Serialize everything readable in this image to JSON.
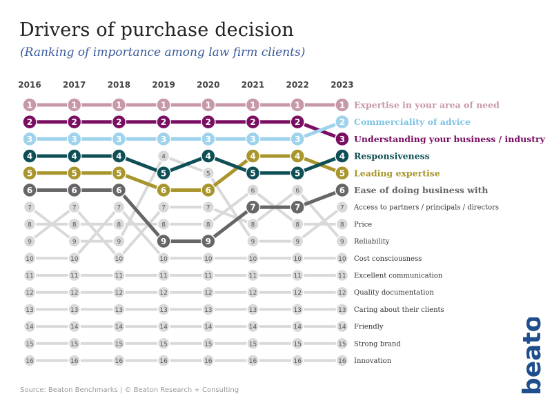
{
  "title": "Drivers of purchase decision",
  "subtitle": "(Ranking of importance among law firm clients)",
  "source": "Source: Beaton Benchmarks | © Beaton Research + Consulting",
  "logo_text": "beaton",
  "logo_color": "#1f4e8c",
  "chart_data": {
    "type": "line",
    "chart_kind": "bump chart (rank over time)",
    "x": [
      "2016",
      "2017",
      "2018",
      "2019",
      "2020",
      "2021",
      "2022",
      "2023"
    ],
    "y_inverted": true,
    "ylim": [
      1,
      16
    ],
    "grid": false,
    "legend": "labels at right end of each line",
    "series": [
      {
        "name": "Expertise in your area of need",
        "ranks": [
          1,
          1,
          1,
          1,
          1,
          1,
          1,
          1
        ],
        "color": "#c799a8",
        "highlight": true
      },
      {
        "name": "Commerciality of advice",
        "ranks": [
          3,
          3,
          3,
          3,
          3,
          3,
          3,
          2
        ],
        "color": "#9fd3ec",
        "highlight": true
      },
      {
        "name": "Understanding your business / industry",
        "ranks": [
          2,
          2,
          2,
          2,
          2,
          2,
          2,
          3
        ],
        "color": "#7a0e62",
        "highlight": true
      },
      {
        "name": "Responsiveness",
        "ranks": [
          4,
          4,
          4,
          5,
          4,
          5,
          5,
          4
        ],
        "color": "#0e4f55",
        "highlight": true
      },
      {
        "name": "Leading expertise",
        "ranks": [
          5,
          5,
          5,
          6,
          6,
          4,
          4,
          5
        ],
        "color": "#a8952b",
        "highlight": true
      },
      {
        "name": "Ease of doing business with",
        "ranks": [
          6,
          6,
          6,
          9,
          9,
          7,
          7,
          6
        ],
        "color": "#686568",
        "highlight": true
      },
      {
        "name": "Access to partners / principals / directors",
        "ranks": [
          7,
          9,
          9,
          4,
          5,
          9,
          9,
          7
        ],
        "color": "#d9d9d9",
        "highlight": false
      },
      {
        "name": "Price",
        "ranks": [
          8,
          8,
          8,
          8,
          8,
          6,
          8,
          8
        ],
        "color": "#d9d9d9",
        "highlight": false
      },
      {
        "name": "Reliability",
        "ranks": [
          9,
          7,
          10,
          7,
          7,
          8,
          6,
          9
        ],
        "color": "#d9d9d9",
        "highlight": false
      },
      {
        "name": "Cost consciousness",
        "ranks": [
          10,
          10,
          7,
          10,
          10,
          10,
          10,
          10
        ],
        "color": "#d9d9d9",
        "highlight": false
      },
      {
        "name": "Excellent communication",
        "ranks": [
          11,
          11,
          11,
          11,
          11,
          11,
          11,
          11
        ],
        "color": "#d9d9d9",
        "highlight": false
      },
      {
        "name": "Quality documentation",
        "ranks": [
          12,
          12,
          12,
          12,
          12,
          12,
          12,
          12
        ],
        "color": "#d9d9d9",
        "highlight": false
      },
      {
        "name": "Caring about their clients",
        "ranks": [
          13,
          13,
          13,
          13,
          13,
          13,
          13,
          13
        ],
        "color": "#d9d9d9",
        "highlight": false
      },
      {
        "name": "Friendly",
        "ranks": [
          14,
          14,
          14,
          14,
          14,
          14,
          14,
          14
        ],
        "color": "#d9d9d9",
        "highlight": false
      },
      {
        "name": "Strong brand",
        "ranks": [
          15,
          15,
          15,
          15,
          15,
          15,
          15,
          15
        ],
        "color": "#d9d9d9",
        "highlight": false
      },
      {
        "name": "Innovation",
        "ranks": [
          16,
          16,
          16,
          16,
          16,
          16,
          16,
          16
        ],
        "color": "#d9d9d9",
        "highlight": false
      }
    ]
  }
}
